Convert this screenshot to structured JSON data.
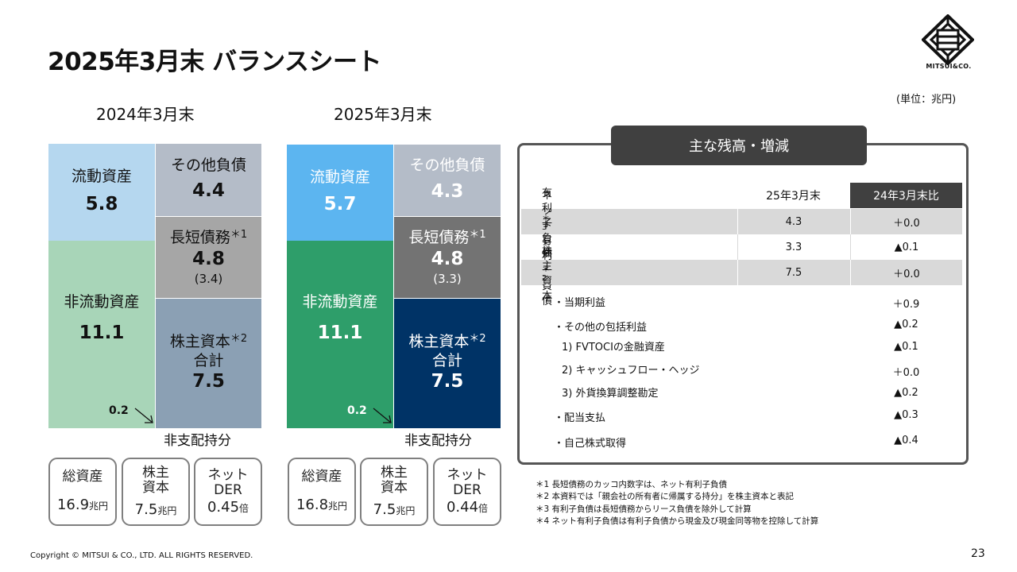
{
  "title": "2025年3月末 バランスシート",
  "logo_text": "MITSUI&CO.",
  "unit": "(単位：兆円)",
  "bs_2024": {
    "heading": "2024年3月末",
    "current_assets": {
      "label": "流動資産",
      "value": "5.8"
    },
    "other_liabilities": {
      "label": "その他負債",
      "value": "4.4"
    },
    "debt": {
      "label": "長短債務",
      "note": "＊1",
      "value": "4.8",
      "sub": "(3.4)"
    },
    "noncurrent_assets": {
      "label": "非流動資産",
      "value": "11.1"
    },
    "equity": {
      "label1": "株主資本",
      "note": "＊2",
      "label2": "合計",
      "value": "7.5"
    },
    "minority_value": "0.2",
    "minority_label": "非支配持分"
  },
  "bs_2025": {
    "heading": "2025年3月末",
    "current_assets": {
      "label": "流動資産",
      "value": "5.7"
    },
    "other_liabilities": {
      "label": "その他負債",
      "value": "4.3"
    },
    "debt": {
      "label": "長短債務",
      "note": "＊1",
      "value": "4.8",
      "sub": "(3.3)"
    },
    "noncurrent_assets": {
      "label": "非流動資産",
      "value": "11.1"
    },
    "equity": {
      "label1": "株主資本",
      "note": "＊2",
      "label2": "合計",
      "value": "7.5"
    },
    "minority_value": "0.2",
    "minority_label": "非支配持分"
  },
  "kpis_2024": [
    {
      "label1": "総資産",
      "label2": "",
      "value": "16.9",
      "unit": "兆円"
    },
    {
      "label1": "株主",
      "label2": "資本",
      "value": "7.5",
      "unit": "兆円"
    },
    {
      "label1": "ネット",
      "label2": "DER",
      "value": "0.45",
      "unit": "倍"
    }
  ],
  "kpis_2025": [
    {
      "label1": "総資産",
      "label2": "",
      "value": "16.8",
      "unit": "兆円"
    },
    {
      "label1": "株主",
      "label2": "資本",
      "value": "7.5",
      "unit": "兆円"
    },
    {
      "label1": "ネット",
      "label2": "DER",
      "value": "0.44",
      "unit": "倍"
    }
  ],
  "panel": {
    "heading": "主な残高・増減",
    "col_current": "25年3月末",
    "col_change": "24年3月末比",
    "rows": [
      {
        "label": "有利子負債",
        "note": "＊3",
        "current": "4.3",
        "change": "＋0.0"
      },
      {
        "label": "ネット有利子負債",
        "note": "＊4",
        "current": "3.3",
        "change": "▲0.1"
      },
      {
        "label": "株主資本",
        "note": "＊2",
        "current": "7.5",
        "change": "＋0.0"
      }
    ],
    "breakdown": [
      {
        "label": "・当期利益",
        "change": "＋0.9"
      },
      {
        "label": "・その他の包括利益",
        "change": "▲0.2"
      },
      {
        "label": "1) FVTOCIの金融資産",
        "change": "▲0.1"
      },
      {
        "label": "2) キャッシュフロー・ヘッジ",
        "change": "＋0.0"
      },
      {
        "label": "3) 外貨換算調整勘定",
        "change": "▲0.2"
      },
      {
        "label": "・配当支払",
        "change": "▲0.3"
      },
      {
        "label": "・自己株式取得",
        "change": "▲0.4"
      }
    ]
  },
  "footnotes": [
    "＊1 長短債務のカッコ内数字は、ネット有利子負債",
    "＊2 本資料では「親会社の所有者に帰属する持分」を株主資本と表記",
    "＊3 有利子負債は長短債務からリース負債を除外して計算",
    "＊4 ネット有利子負債は有利子負債から現金及び現金同等物を控除して計算"
  ],
  "copyright": "Copyright © MITSUI & CO., LTD. ALL RIGHTS RESERVED.",
  "page_number": "23",
  "colors": {
    "bs2024_current": "#b5d7ef",
    "bs2024_other": "#b4bcc8",
    "bs2024_debt": "#a6a6a6",
    "bs2024_noncurrent": "#a8d5b8",
    "bs2024_equity": "#8ba0b4",
    "bs2025_current": "#5cb5f0",
    "bs2025_other": "#b4bcc8",
    "bs2025_debt": "#737373",
    "bs2025_noncurrent": "#2e9e6a",
    "bs2025_equity": "#003366",
    "dark_gray": "#404040"
  }
}
